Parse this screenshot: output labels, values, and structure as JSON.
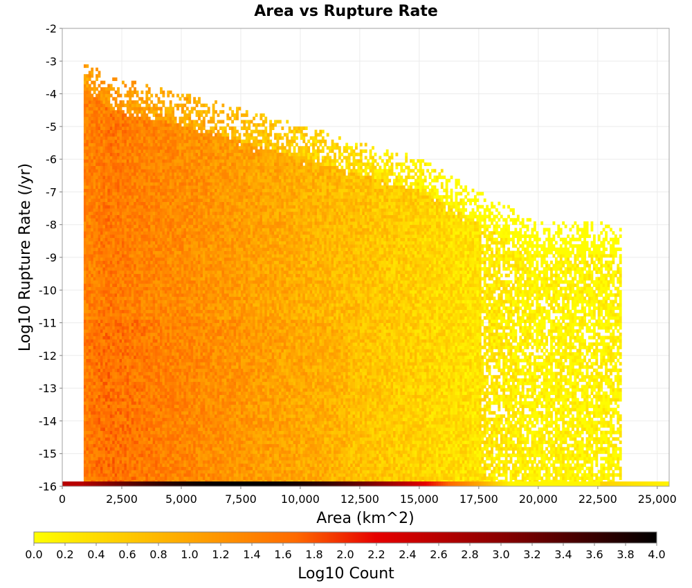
{
  "chart_data": {
    "type": "heatmap",
    "title": "Area vs Rupture Rate",
    "xlabel": "Area (km^2)",
    "ylabel": "Log10 Rupture Rate (/yr)",
    "xlim": [
      0,
      25500
    ],
    "ylim": [
      -16,
      -2
    ],
    "x_ticks": [
      0,
      2500,
      5000,
      7500,
      10000,
      12500,
      15000,
      17500,
      20000,
      22500,
      25000
    ],
    "x_tick_labels": [
      "0",
      "2,500",
      "5,000",
      "7,500",
      "10,000",
      "12,500",
      "15,000",
      "17,500",
      "20,000",
      "22,500",
      "25,000"
    ],
    "y_ticks": [
      -2,
      -3,
      -4,
      -5,
      -6,
      -7,
      -8,
      -9,
      -10,
      -11,
      -12,
      -13,
      -14,
      -15,
      -16
    ],
    "y_tick_labels": [
      "-2",
      "-3",
      "-4",
      "-5",
      "-6",
      "-7",
      "-8",
      "-9",
      "-10",
      "-11",
      "-12",
      "-13",
      "-14",
      "-15",
      "-16"
    ],
    "grid": true,
    "colorbar": {
      "label": "Log10 Count",
      "range": [
        0.0,
        4.0
      ],
      "tick_labels": [
        "0.0",
        "0.2",
        "0.4",
        "0.6",
        "0.8",
        "1.0",
        "1.2",
        "1.4",
        "1.6",
        "1.8",
        "2.0",
        "2.2",
        "2.4",
        "2.6",
        "2.8",
        "3.0",
        "3.2",
        "3.4",
        "3.6",
        "3.8",
        "4.0"
      ],
      "colors": [
        "#ffff00",
        "#ff8c00",
        "#e60000",
        "#800000",
        "#000000"
      ],
      "placement": "bottom"
    },
    "density_regions": [
      {
        "area_range": [
          900,
          2000
        ],
        "rate_top": -2.8,
        "log10_count": 1.4
      },
      {
        "area_range": [
          2000,
          5000
        ],
        "rate_top": -3.5,
        "log10_count": 1.5
      },
      {
        "area_range": [
          5000,
          7500
        ],
        "rate_top": -4.0,
        "log10_count": 1.3
      },
      {
        "area_range": [
          7500,
          10000
        ],
        "rate_top": -4.5,
        "log10_count": 1.1
      },
      {
        "area_range": [
          10000,
          12500
        ],
        "rate_top": -5.0,
        "log10_count": 0.9
      },
      {
        "area_range": [
          12500,
          15000
        ],
        "rate_top": -5.5,
        "log10_count": 0.7
      },
      {
        "area_range": [
          15000,
          17500
        ],
        "rate_top": -6.0,
        "log10_count": 0.5
      },
      {
        "area_range": [
          17500,
          20000
        ],
        "rate_top": -7.0,
        "log10_count": 0.3
      },
      {
        "area_range": [
          20000,
          23500
        ],
        "rate_top": -8.0,
        "log10_count": 0.1
      }
    ],
    "bottom_band": {
      "rate": -16,
      "area_range": [
        0,
        25500
      ],
      "peak_area": 7500,
      "peak_log10_count": 4.0
    }
  }
}
